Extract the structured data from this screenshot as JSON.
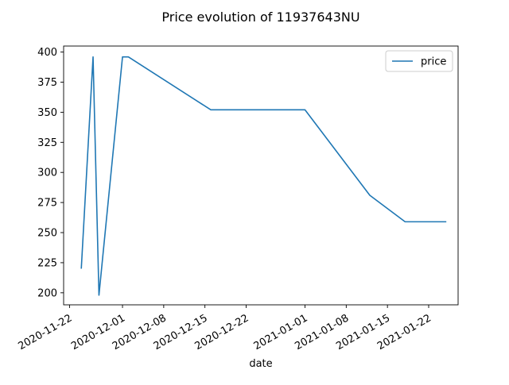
{
  "chart_data": {
    "type": "line",
    "title": "Price evolution of 11937643NU",
    "xlabel": "date",
    "ylabel": "",
    "x_ticks": [
      "2020-11-22",
      "2020-12-01",
      "2020-12-08",
      "2020-12-15",
      "2020-12-22",
      "2021-01-01",
      "2021-01-08",
      "2021-01-15",
      "2021-01-22"
    ],
    "y_ticks": [
      200,
      225,
      250,
      275,
      300,
      325,
      350,
      375,
      400
    ],
    "xlim": [
      "2020-11-21",
      "2021-01-27"
    ],
    "ylim": [
      190,
      405
    ],
    "grid": false,
    "legend": {
      "position": "top-right"
    },
    "series": [
      {
        "name": "price",
        "color": "#1f77b4",
        "points": [
          {
            "x": "2020-11-24",
            "y": 220
          },
          {
            "x": "2020-11-26",
            "y": 396
          },
          {
            "x": "2020-11-27",
            "y": 198
          },
          {
            "x": "2020-12-01",
            "y": 396
          },
          {
            "x": "2020-12-02",
            "y": 396
          },
          {
            "x": "2020-12-16",
            "y": 352
          },
          {
            "x": "2021-01-01",
            "y": 352
          },
          {
            "x": "2021-01-12",
            "y": 281
          },
          {
            "x": "2021-01-18",
            "y": 259
          },
          {
            "x": "2021-01-25",
            "y": 259
          }
        ]
      }
    ]
  }
}
